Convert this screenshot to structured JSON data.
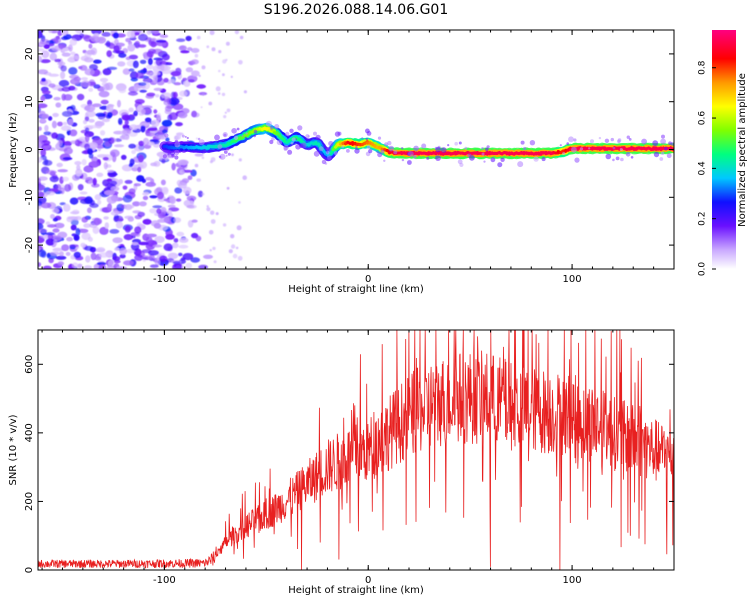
{
  "title": "S196.2026.088.14.06.G01",
  "colors": {
    "trace": "#e82020",
    "frame": "#000000"
  },
  "chart_data": [
    {
      "type": "heatmap",
      "title": "S196.2026.088.14.06.G01",
      "xlabel": "Height of straight line (km)",
      "ylabel": "Frequency (Hz)",
      "xlim": [
        -162,
        150
      ],
      "ylim": [
        -25,
        25
      ],
      "xticks": [
        "-100",
        "0",
        "100"
      ],
      "yticks": [
        "20",
        "10",
        "0",
        "-10",
        "-20"
      ],
      "colorbar": {
        "label": "Normalized spectral amplitude",
        "range": [
          0,
          0.95
        ],
        "ticks": [
          "0.0",
          "0.2",
          "0.4",
          "0.6",
          "0.8"
        ]
      },
      "ridge": {
        "description": "dominant frequency track vs height",
        "x": [
          -100,
          -90,
          -80,
          -70,
          -62,
          -56,
          -50,
          -45,
          -40,
          -35,
          -30,
          -25,
          -20,
          -15,
          -10,
          -5,
          0,
          5,
          10,
          15,
          30,
          50,
          70,
          90,
          95,
          100,
          120,
          140,
          150
        ],
        "y": [
          0.5,
          0.5,
          0.4,
          1.0,
          2.5,
          4.0,
          4.5,
          3.5,
          1.5,
          2.5,
          1.0,
          1.5,
          -1.5,
          1.0,
          1.5,
          1.0,
          1.5,
          0.5,
          -0.5,
          -0.8,
          -0.8,
          -0.8,
          -0.8,
          -0.8,
          -0.5,
          0.2,
          0.2,
          0.2,
          0.2
        ],
        "amplitude": [
          0.3,
          0.35,
          0.4,
          0.45,
          0.55,
          0.6,
          0.7,
          0.55,
          0.45,
          0.5,
          0.4,
          0.45,
          0.35,
          0.7,
          0.9,
          0.85,
          0.8,
          0.75,
          0.9,
          0.95,
          0.95,
          0.95,
          0.95,
          0.95,
          0.85,
          0.95,
          0.95,
          0.95,
          0.95
        ]
      },
      "noise_region": {
        "x_range": [
          -162,
          -78
        ],
        "amplitude_range": [
          0.05,
          0.3
        ]
      }
    },
    {
      "type": "line",
      "xlabel": "Height of straight line (km)",
      "ylabel": "SNR (10 * v/v)",
      "xlim": [
        -162,
        150
      ],
      "ylim": [
        0,
        700
      ],
      "xticks": [
        "-100",
        "0",
        "100"
      ],
      "yticks": [
        "0",
        "200",
        "400",
        "600"
      ],
      "series": [
        {
          "name": "SNR",
          "color": "#e82020",
          "envelope_x": [
            -162,
            -120,
            -80,
            -75,
            -70,
            -60,
            -50,
            -40,
            -30,
            -20,
            -10,
            0,
            10,
            20,
            30,
            40,
            50,
            60,
            70,
            80,
            90,
            100,
            110,
            120,
            130,
            140,
            150
          ],
          "envelope_y": [
            20,
            20,
            22,
            40,
            80,
            130,
            160,
            200,
            250,
            300,
            330,
            350,
            400,
            450,
            480,
            500,
            505,
            500,
            480,
            470,
            460,
            450,
            430,
            400,
            380,
            350,
            330
          ]
        }
      ]
    }
  ]
}
